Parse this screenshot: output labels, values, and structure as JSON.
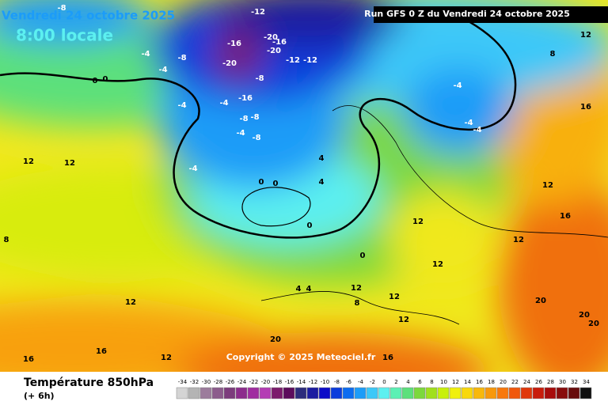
{
  "header": {
    "date": "Vendredi 24 octobre 2025",
    "time": "8:00 locale",
    "run": "Run GFS 0 Z du Vendredi 24 octobre 2025"
  },
  "map": {
    "copyright": "Copyright © 2025 Meteociel.fr",
    "labels": [
      -8,
      -12,
      -16,
      -20,
      -16,
      -20,
      -20,
      -12,
      -12,
      -8,
      -4,
      -4,
      -8,
      0,
      0,
      -4,
      -4,
      -16,
      -8,
      -8,
      -4,
      -8,
      -4,
      0,
      0,
      4,
      4,
      0,
      0,
      4,
      4,
      8,
      12,
      12,
      12,
      12,
      12,
      12,
      12,
      16,
      16,
      12,
      8,
      -4,
      -4,
      -4,
      12,
      12,
      8,
      12,
      16,
      16,
      12,
      16,
      20,
      20,
      20,
      20
    ]
  },
  "footer": {
    "title": "Température 850hPa",
    "step": "(+ 6h)"
  },
  "colorbar": {
    "ticks": [
      -34,
      -32,
      -30,
      -28,
      -26,
      -24,
      -22,
      -20,
      -18,
      -16,
      -14,
      -12,
      -10,
      -8,
      -6,
      -4,
      -2,
      0,
      2,
      4,
      6,
      8,
      10,
      12,
      14,
      16,
      18,
      20,
      22,
      24,
      26,
      28,
      30,
      32,
      34
    ],
    "colors": [
      "#d4d4d4",
      "#b4b4b4",
      "#9c7c9c",
      "#8c5c8c",
      "#7c3c7c",
      "#8c2c8c",
      "#a02ca0",
      "#b43cb4",
      "#7c1c6c",
      "#5c0c5c",
      "#2c2c7c",
      "#1c1ca0",
      "#0c0cc8",
      "#0c3cdc",
      "#0c6cf0",
      "#1c9cf8",
      "#3cc8f8",
      "#5cf0f0",
      "#5cf0b4",
      "#5ce07c",
      "#7cd83c",
      "#a0e01c",
      "#c8f00c",
      "#f0f00c",
      "#f8d80c",
      "#f8b80c",
      "#f8980c",
      "#f8780c",
      "#f0580c",
      "#e0380c",
      "#c81c0c",
      "#a80c0c",
      "#880c0c",
      "#680c0c",
      "#101010"
    ]
  }
}
